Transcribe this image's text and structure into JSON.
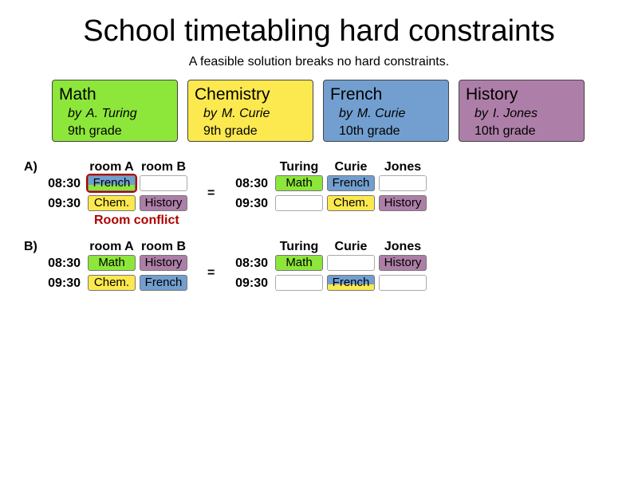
{
  "title": "School timetabling hard constraints",
  "subtitle": "A feasible solution breaks no hard constraints.",
  "colors": {
    "math": "#8de63a",
    "chemistry": "#fce94f",
    "french": "#729fcf",
    "history": "#ad7fa8",
    "conflict": "#b00000"
  },
  "courses": [
    {
      "name": "Math",
      "by": "by",
      "teacher": "A. Turing",
      "grade": "9th grade"
    },
    {
      "name": "Chemistry",
      "by": "by",
      "teacher": "M. Curie",
      "grade": "9th grade"
    },
    {
      "name": "French",
      "by": "by",
      "teacher": "M. Curie",
      "grade": "10th grade"
    },
    {
      "name": "History",
      "by": "by",
      "teacher": "I. Jones",
      "grade": "10th grade"
    }
  ],
  "scenarios": [
    {
      "label": "A)",
      "room_headers": [
        "room A",
        "room B"
      ],
      "teacher_headers": [
        "Turing",
        "Curie",
        "Jones"
      ],
      "times": [
        "08:30",
        "09:30"
      ],
      "equals": "=",
      "room_cells": [
        [
          "French",
          ""
        ],
        [
          "Chem.",
          "History"
        ]
      ],
      "teacher_cells": [
        [
          "Math",
          "French",
          ""
        ],
        [
          "",
          "Chem.",
          "History"
        ]
      ],
      "conflict_label": "Room conflict"
    },
    {
      "label": "B)",
      "room_headers": [
        "room A",
        "room B"
      ],
      "teacher_headers": [
        "Turing",
        "Curie",
        "Jones"
      ],
      "times": [
        "08:30",
        "09:30"
      ],
      "equals": "=",
      "room_cells": [
        [
          "Math",
          "History"
        ],
        [
          "Chem.",
          "French"
        ]
      ],
      "teacher_cells": [
        [
          "Math",
          "",
          "History"
        ],
        [
          "",
          "French",
          ""
        ]
      ]
    }
  ]
}
